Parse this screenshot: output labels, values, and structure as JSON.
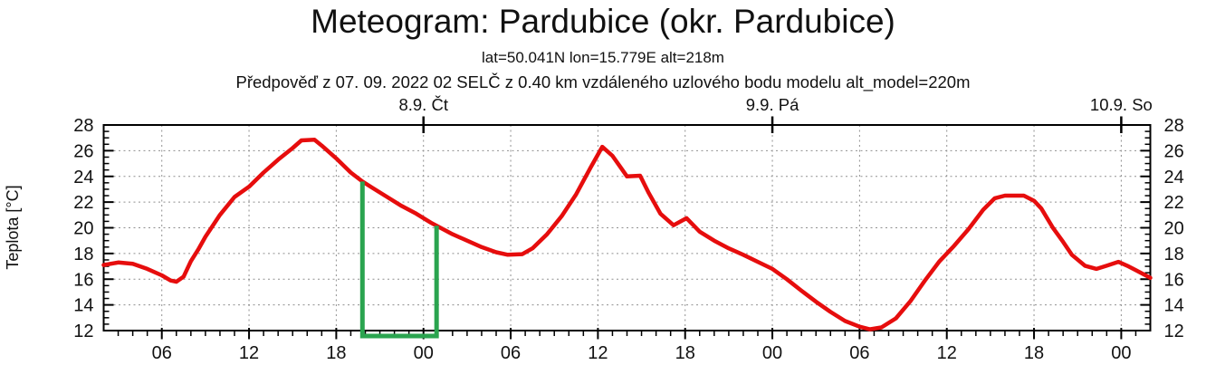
{
  "chart_data": {
    "type": "line",
    "title": "Meteogram: Pardubice (okr. Pardubice)",
    "subtitle_coords": "lat=50.041N lon=15.779E alt=218m",
    "subtitle_forecast": "Předpověď z 07. 09. 2022 02 SELČ z 0.40 km vzdáleného uzlového bodu modelu alt_model=220m",
    "ylabel": "Teplota [°C]",
    "ylim": [
      12,
      28
    ],
    "y_ticks": [
      12,
      14,
      16,
      18,
      20,
      22,
      24,
      26,
      28
    ],
    "y_minor_step": 0.5,
    "grid": true,
    "x_hours_span": 72,
    "x_minor_step_h": 1,
    "x_ticks": [
      {
        "hour": 4,
        "label": "06"
      },
      {
        "hour": 10,
        "label": "12"
      },
      {
        "hour": 16,
        "label": "18"
      },
      {
        "hour": 22,
        "label": "00"
      },
      {
        "hour": 28,
        "label": "06"
      },
      {
        "hour": 34,
        "label": "12"
      },
      {
        "hour": 40,
        "label": "18"
      },
      {
        "hour": 46,
        "label": "00"
      },
      {
        "hour": 52,
        "label": "06"
      },
      {
        "hour": 58,
        "label": "12"
      },
      {
        "hour": 64,
        "label": "18"
      },
      {
        "hour": 70,
        "label": "00"
      }
    ],
    "day_ticks": [
      {
        "hour": 22,
        "label": "8.9. Čt"
      },
      {
        "hour": 46,
        "label": "9.9. Pá"
      },
      {
        "hour": 70,
        "label": "10.9. So"
      }
    ],
    "series": [
      {
        "name": "teplota",
        "color": "#e60d0d",
        "points": [
          [
            0,
            17.1
          ],
          [
            1,
            17.3
          ],
          [
            2,
            17.2
          ],
          [
            3,
            16.8
          ],
          [
            4,
            16.3
          ],
          [
            4.6,
            15.9
          ],
          [
            5,
            15.8
          ],
          [
            5.5,
            16.2
          ],
          [
            6,
            17.4
          ],
          [
            6.5,
            18.3
          ],
          [
            7,
            19.3
          ],
          [
            8,
            21.0
          ],
          [
            9,
            22.4
          ],
          [
            10,
            23.2
          ],
          [
            11,
            24.3
          ],
          [
            12,
            25.3
          ],
          [
            13,
            26.2
          ],
          [
            13.6,
            26.8
          ],
          [
            14.5,
            26.85
          ],
          [
            15,
            26.4
          ],
          [
            16,
            25.4
          ],
          [
            17,
            24.3
          ],
          [
            17.8,
            23.6
          ],
          [
            18.5,
            23.1
          ],
          [
            19.5,
            22.4
          ],
          [
            20.5,
            21.7
          ],
          [
            21.5,
            21.1
          ],
          [
            22.5,
            20.4
          ],
          [
            23,
            20.1
          ],
          [
            24,
            19.5
          ],
          [
            25,
            19.0
          ],
          [
            26,
            18.5
          ],
          [
            27,
            18.1
          ],
          [
            27.8,
            17.9
          ],
          [
            28.8,
            17.95
          ],
          [
            29.5,
            18.4
          ],
          [
            30.5,
            19.5
          ],
          [
            31.5,
            20.9
          ],
          [
            32.5,
            22.6
          ],
          [
            33.5,
            24.7
          ],
          [
            34.3,
            26.3
          ],
          [
            35,
            25.6
          ],
          [
            35.5,
            24.8
          ],
          [
            36,
            24.0
          ],
          [
            36.9,
            24.05
          ],
          [
            37.5,
            22.7
          ],
          [
            38.3,
            21.1
          ],
          [
            39.2,
            20.2
          ],
          [
            40.1,
            20.75
          ],
          [
            41,
            19.7
          ],
          [
            42,
            19.0
          ],
          [
            43,
            18.4
          ],
          [
            44,
            17.9
          ],
          [
            45,
            17.35
          ],
          [
            46,
            16.8
          ],
          [
            47,
            16.0
          ],
          [
            48,
            15.1
          ],
          [
            49,
            14.25
          ],
          [
            50,
            13.45
          ],
          [
            51,
            12.75
          ],
          [
            52,
            12.3
          ],
          [
            52.7,
            12.1
          ],
          [
            53.5,
            12.25
          ],
          [
            54.5,
            12.95
          ],
          [
            55.5,
            14.3
          ],
          [
            56.5,
            15.9
          ],
          [
            57.5,
            17.4
          ],
          [
            58.5,
            18.6
          ],
          [
            59.5,
            19.9
          ],
          [
            60.5,
            21.4
          ],
          [
            61.3,
            22.3
          ],
          [
            62,
            22.5
          ],
          [
            63.3,
            22.5
          ],
          [
            64,
            22.1
          ],
          [
            64.5,
            21.5
          ],
          [
            65.3,
            20.0
          ],
          [
            66,
            18.9
          ],
          [
            66.6,
            17.9
          ],
          [
            67.5,
            17.05
          ],
          [
            68.3,
            16.8
          ],
          [
            69,
            17.05
          ],
          [
            69.8,
            17.35
          ],
          [
            70.5,
            17.0
          ],
          [
            71,
            16.7
          ],
          [
            72,
            16.1
          ]
        ]
      }
    ],
    "annotation_bracket": {
      "color": "#2aa44f",
      "x_start_h": 17.8,
      "x_end_h": 22.9
    },
    "colors": {
      "curve": "#e60d0d",
      "annotation": "#2aa44f",
      "grid": "#909090",
      "axis": "#000000",
      "text": "#111111"
    }
  }
}
